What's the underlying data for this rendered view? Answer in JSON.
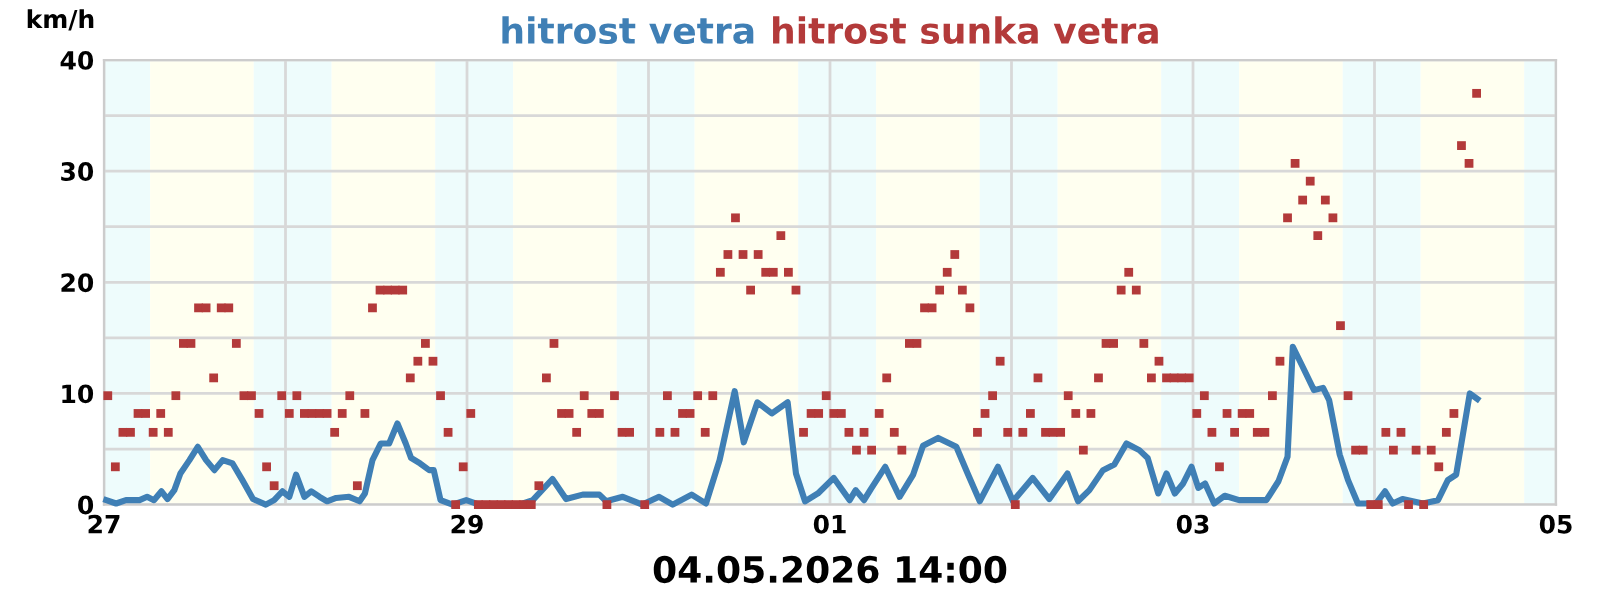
{
  "chart_data": {
    "type": "line",
    "xlabel": "04.05.2026 14:00",
    "ylabel": "km/h",
    "legend": "top",
    "grid": true,
    "xlim": [
      "2026-04-27",
      "2026-05-05"
    ],
    "xticks": [
      {
        "value": "2026-04-27",
        "label": "27"
      },
      {
        "value": "2026-04-28",
        "label": null
      },
      {
        "value": "2026-04-29",
        "label": "29"
      },
      {
        "value": "2026-04-30",
        "label": null
      },
      {
        "value": "2026-05-01",
        "label": "01"
      },
      {
        "value": "2026-05-02",
        "label": null
      },
      {
        "value": "2026-05-03",
        "label": "03"
      },
      {
        "value": "2026-05-04",
        "label": null
      },
      {
        "value": "2026-05-05",
        "label": "05"
      }
    ],
    "ylim": [
      0,
      40
    ],
    "yticks": [
      0,
      {
        "value": 5,
        "label": null
      },
      10,
      {
        "value": 15,
        "label": null
      },
      20,
      {
        "value": 25,
        "label": null
      },
      30,
      {
        "value": 35,
        "label": null
      },
      40
    ],
    "bands": [
      {
        "axis": "x",
        "from": "2026-04-27T00:00",
        "to": "2026-04-27T06:06",
        "color": "#eefcfc"
      },
      {
        "axis": "x",
        "from": "2026-04-27T06:06",
        "to": "2026-04-27T19:48",
        "color": "#fffff0"
      },
      {
        "axis": "x",
        "from": "2026-04-27T19:48",
        "to": "2026-04-28T06:06",
        "color": "#eefcfc"
      },
      {
        "axis": "x",
        "from": "2026-04-28T06:06",
        "to": "2026-04-28T19:48",
        "color": "#fffff0"
      },
      {
        "axis": "x",
        "from": "2026-04-28T19:48",
        "to": "2026-04-29T06:06",
        "color": "#eefcfc"
      },
      {
        "axis": "x",
        "from": "2026-04-29T06:06",
        "to": "2026-04-29T19:48",
        "color": "#fffff0"
      },
      {
        "axis": "x",
        "from": "2026-04-29T19:48",
        "to": "2026-04-30T06:06",
        "color": "#eefcfc"
      },
      {
        "axis": "x",
        "from": "2026-04-30T06:06",
        "to": "2026-04-30T19:48",
        "color": "#fffff0"
      },
      {
        "axis": "x",
        "from": "2026-04-30T19:48",
        "to": "2026-05-01T06:06",
        "color": "#eefcfc"
      },
      {
        "axis": "x",
        "from": "2026-05-01T06:06",
        "to": "2026-05-01T19:48",
        "color": "#fffff0"
      },
      {
        "axis": "x",
        "from": "2026-05-01T19:48",
        "to": "2026-05-02T06:06",
        "color": "#eefcfc"
      },
      {
        "axis": "x",
        "from": "2026-05-02T06:06",
        "to": "2026-05-02T19:48",
        "color": "#fffff0"
      },
      {
        "axis": "x",
        "from": "2026-05-02T19:48",
        "to": "2026-05-03T06:06",
        "color": "#eefcfc"
      },
      {
        "axis": "x",
        "from": "2026-05-03T06:06",
        "to": "2026-05-03T19:48",
        "color": "#fffff0"
      },
      {
        "axis": "x",
        "from": "2026-05-03T19:48",
        "to": "2026-05-04T06:06",
        "color": "#eefcfc"
      },
      {
        "axis": "x",
        "from": "2026-05-04T06:06",
        "to": "2026-05-04T19:48",
        "color": "#fffff0"
      },
      {
        "axis": "x",
        "from": "2026-05-04T19:48",
        "to": "2026-05-05T00:00",
        "color": "#eefcfc"
      }
    ],
    "series": [
      {
        "name": "hitrost vetra",
        "color": "#3f7fb5",
        "marker": "none",
        "x": [
          "2026-04-27T00:18",
          "2026-04-27T01:36",
          "2026-04-27T02:54",
          "2026-04-27T04:42",
          "2026-04-27T05:42",
          "2026-04-27T06:36",
          "2026-04-27T07:36",
          "2026-04-27T08:24",
          "2026-04-27T09:18",
          "2026-04-27T10:06",
          "2026-04-27T11:18",
          "2026-04-27T12:24",
          "2026-04-27T13:30",
          "2026-04-27T14:36",
          "2026-04-27T15:42",
          "2026-04-27T17:00",
          "2026-04-27T18:18",
          "2026-04-27T19:42",
          "2026-04-27T21:24",
          "2026-04-27T22:30",
          "2026-04-27T23:36",
          "2026-04-28T00:30",
          "2026-04-28T01:24",
          "2026-04-28T02:30",
          "2026-04-28T03:24",
          "2026-04-28T04:30",
          "2026-04-28T05:30",
          "2026-04-28T06:42",
          "2026-04-28T08:24",
          "2026-04-28T09:48",
          "2026-04-28T10:30",
          "2026-04-28T11:30",
          "2026-04-28T12:36",
          "2026-04-28T13:42",
          "2026-04-28T14:48",
          "2026-04-28T15:54",
          "2026-04-28T16:36",
          "2026-04-28T17:48",
          "2026-04-28T19:00",
          "2026-04-28T19:36",
          "2026-04-28T20:30",
          "2026-04-28T22:06",
          "2026-04-28T23:54",
          "2026-04-29T01:36",
          "2026-04-29T06:54",
          "2026-04-29T08:42",
          "2026-04-29T11:18",
          "2026-04-29T13:06",
          "2026-04-29T15:18",
          "2026-04-29T17:30",
          "2026-04-29T18:24",
          "2026-04-29T20:36",
          "2026-04-29T23:12",
          "2026-04-30T01:24",
          "2026-04-30T03:12",
          "2026-04-30T05:42",
          "2026-04-30T07:36",
          "2026-04-30T09:24",
          "2026-04-30T11:24",
          "2026-04-30T12:36",
          "2026-04-30T14:24",
          "2026-04-30T16:18",
          "2026-04-30T18:24",
          "2026-04-30T19:30",
          "2026-04-30T20:42",
          "2026-04-30T22:24",
          "2026-05-01T00:30",
          "2026-05-01T02:36",
          "2026-05-01T03:24",
          "2026-05-01T04:30",
          "2026-05-01T05:24",
          "2026-05-01T07:18",
          "2026-05-01T09:12",
          "2026-05-01T11:00",
          "2026-05-01T12:18",
          "2026-05-01T14:18",
          "2026-05-01T16:42",
          "2026-05-01T18:12",
          "2026-05-01T19:48",
          "2026-05-01T22:12",
          "2026-05-02T00:12",
          "2026-05-02T02:48",
          "2026-05-02T05:00",
          "2026-05-02T07:24",
          "2026-05-02T08:48",
          "2026-05-02T10:18",
          "2026-05-02T12:06",
          "2026-05-02T13:36",
          "2026-05-02T15:12",
          "2026-05-02T16:54",
          "2026-05-02T18:00",
          "2026-05-02T19:24",
          "2026-05-02T20:30",
          "2026-05-02T21:36",
          "2026-05-02T22:42",
          "2026-05-02T23:48",
          "2026-05-03T00:42",
          "2026-05-03T01:36",
          "2026-05-03T02:48",
          "2026-05-03T04:12",
          "2026-05-03T06:06",
          "2026-05-03T09:42",
          "2026-05-03T11:18",
          "2026-05-03T12:30",
          "2026-05-03T13:12",
          "2026-05-03T14:30",
          "2026-05-03T16:00",
          "2026-05-03T17:12",
          "2026-05-03T18:00",
          "2026-05-03T19:24",
          "2026-05-03T20:30",
          "2026-05-03T21:48",
          "2026-05-04T00:12",
          "2026-05-04T01:24",
          "2026-05-04T02:24",
          "2026-05-04T03:42",
          "2026-05-04T06:24",
          "2026-05-04T08:24",
          "2026-05-04T09:42",
          "2026-05-04T10:48",
          "2026-05-04T12:36",
          "2026-05-04T13:36"
        ],
        "values": [
          0.4,
          0.1,
          0.4,
          0.4,
          0.7,
          0.4,
          1.2,
          0.5,
          1.3,
          2.8,
          4.0,
          5.2,
          4.0,
          3.1,
          4.0,
          3.7,
          2.2,
          0.5,
          0,
          0.4,
          1.2,
          0.7,
          2.7,
          0.7,
          1.2,
          0.7,
          0.3,
          0.6,
          0.7,
          0.3,
          1.0,
          4.0,
          5.5,
          5.5,
          7.3,
          5.5,
          4.2,
          3.7,
          3.1,
          3.1,
          0.4,
          0,
          0.4,
          0,
          0,
          0.4,
          2.3,
          0.5,
          0.9,
          0.9,
          0.3,
          0.7,
          0,
          0.7,
          0,
          0.9,
          0.1,
          4.0,
          10.2,
          5.6,
          9.2,
          8.2,
          9.2,
          2.8,
          0.3,
          1.0,
          2.4,
          0.4,
          1.3,
          0.4,
          1.4,
          3.4,
          0.7,
          2.7,
          5.3,
          6.0,
          5.2,
          2.8,
          0.3,
          3.4,
          0.3,
          2.4,
          0.5,
          2.8,
          0.3,
          1.3,
          3.1,
          3.6,
          5.5,
          4.9,
          4.2,
          1.0,
          2.8,
          1.0,
          1.9,
          3.4,
          1.5,
          1.9,
          0.1,
          0.8,
          0.4,
          0.4,
          2.1,
          4.3,
          14.2,
          12.4,
          10.3,
          10.5,
          9.4,
          4.5,
          2.2,
          0.1,
          0.1,
          1.2,
          0.1,
          0.5,
          0.1,
          0.4,
          2.2,
          2.7,
          10.0,
          9.5
        ]
      },
      {
        "name": "hitrost sunka vetra",
        "type": "scatter",
        "color": "#b33a3a",
        "marker": "square",
        "x": [
          "2026-04-27T00:30",
          "2026-04-27T01:30",
          "2026-04-27T02:30",
          "2026-04-27T03:30",
          "2026-04-27T04:30",
          "2026-04-27T05:30",
          "2026-04-27T06:30",
          "2026-04-27T07:30",
          "2026-04-27T08:30",
          "2026-04-27T09:30",
          "2026-04-27T10:30",
          "2026-04-27T11:30",
          "2026-04-27T12:30",
          "2026-04-27T13:30",
          "2026-04-27T14:30",
          "2026-04-27T15:30",
          "2026-04-27T16:30",
          "2026-04-27T17:30",
          "2026-04-27T18:30",
          "2026-04-27T19:30",
          "2026-04-27T20:30",
          "2026-04-27T21:30",
          "2026-04-27T22:30",
          "2026-04-27T23:30",
          "2026-04-28T00:30",
          "2026-04-28T01:30",
          "2026-04-28T02:30",
          "2026-04-28T03:30",
          "2026-04-28T04:30",
          "2026-04-28T05:30",
          "2026-04-28T06:30",
          "2026-04-28T07:30",
          "2026-04-28T08:30",
          "2026-04-28T09:30",
          "2026-04-28T10:30",
          "2026-04-28T11:30",
          "2026-04-28T12:30",
          "2026-04-28T13:30",
          "2026-04-28T14:30",
          "2026-04-28T15:30",
          "2026-04-28T16:30",
          "2026-04-28T17:30",
          "2026-04-28T18:30",
          "2026-04-28T19:30",
          "2026-04-28T20:30",
          "2026-04-28T21:30",
          "2026-04-28T22:30",
          "2026-04-28T23:30",
          "2026-04-29T00:30",
          "2026-04-29T01:30",
          "2026-04-29T02:30",
          "2026-04-29T03:30",
          "2026-04-29T04:30",
          "2026-04-29T05:30",
          "2026-04-29T06:30",
          "2026-04-29T07:30",
          "2026-04-29T08:30",
          "2026-04-29T09:30",
          "2026-04-29T10:30",
          "2026-04-29T11:30",
          "2026-04-29T12:30",
          "2026-04-29T13:30",
          "2026-04-29T14:30",
          "2026-04-29T15:30",
          "2026-04-29T16:30",
          "2026-04-29T17:30",
          "2026-04-29T18:30",
          "2026-04-29T19:30",
          "2026-04-29T20:30",
          "2026-04-29T21:30",
          "2026-04-29T23:30",
          "2026-04-30T01:30",
          "2026-04-30T02:30",
          "2026-04-30T03:30",
          "2026-04-30T04:30",
          "2026-04-30T05:30",
          "2026-04-30T06:30",
          "2026-04-30T07:30",
          "2026-04-30T08:30",
          "2026-04-30T09:30",
          "2026-04-30T10:30",
          "2026-04-30T11:30",
          "2026-04-30T12:30",
          "2026-04-30T13:30",
          "2026-04-30T14:30",
          "2026-04-30T15:30",
          "2026-04-30T16:30",
          "2026-04-30T17:30",
          "2026-04-30T18:30",
          "2026-04-30T19:30",
          "2026-04-30T20:30",
          "2026-04-30T21:30",
          "2026-04-30T22:30",
          "2026-04-30T23:30",
          "2026-05-01T00:30",
          "2026-05-01T01:30",
          "2026-05-01T02:30",
          "2026-05-01T03:30",
          "2026-05-01T04:30",
          "2026-05-01T05:30",
          "2026-05-01T06:30",
          "2026-05-01T07:30",
          "2026-05-01T08:30",
          "2026-05-01T09:30",
          "2026-05-01T10:30",
          "2026-05-01T11:30",
          "2026-05-01T12:30",
          "2026-05-01T13:30",
          "2026-05-01T14:30",
          "2026-05-01T15:30",
          "2026-05-01T16:30",
          "2026-05-01T17:30",
          "2026-05-01T18:30",
          "2026-05-01T19:30",
          "2026-05-01T20:30",
          "2026-05-01T21:30",
          "2026-05-01T22:30",
          "2026-05-01T23:30",
          "2026-05-02T00:30",
          "2026-05-02T01:30",
          "2026-05-02T02:30",
          "2026-05-02T03:30",
          "2026-05-02T04:30",
          "2026-05-02T05:30",
          "2026-05-02T06:30",
          "2026-05-02T07:30",
          "2026-05-02T08:30",
          "2026-05-02T09:30",
          "2026-05-02T10:30",
          "2026-05-02T11:30",
          "2026-05-02T12:30",
          "2026-05-02T13:30",
          "2026-05-02T14:30",
          "2026-05-02T15:30",
          "2026-05-02T16:30",
          "2026-05-02T17:30",
          "2026-05-02T18:30",
          "2026-05-02T19:30",
          "2026-05-02T20:30",
          "2026-05-02T21:30",
          "2026-05-02T22:30",
          "2026-05-02T23:30",
          "2026-05-03T00:30",
          "2026-05-03T01:30",
          "2026-05-03T02:30",
          "2026-05-03T03:30",
          "2026-05-03T04:30",
          "2026-05-03T05:30",
          "2026-05-03T06:30",
          "2026-05-03T07:30",
          "2026-05-03T08:30",
          "2026-05-03T09:30",
          "2026-05-03T10:30",
          "2026-05-03T11:30",
          "2026-05-03T12:30",
          "2026-05-03T13:30",
          "2026-05-03T14:30",
          "2026-05-03T15:30",
          "2026-05-03T16:30",
          "2026-05-03T17:30",
          "2026-05-03T18:30",
          "2026-05-03T19:30",
          "2026-05-03T20:30",
          "2026-05-03T21:30",
          "2026-05-03T22:30",
          "2026-05-03T23:30",
          "2026-05-04T00:30",
          "2026-05-04T01:30",
          "2026-05-04T02:30",
          "2026-05-04T03:30",
          "2026-05-04T04:30",
          "2026-05-04T05:30",
          "2026-05-04T06:30",
          "2026-05-04T07:30",
          "2026-05-04T08:30",
          "2026-05-04T09:30",
          "2026-05-04T10:30",
          "2026-05-04T11:30",
          "2026-05-04T12:30",
          "2026-05-04T13:30"
        ],
        "values": [
          9.8,
          3.4,
          6.5,
          6.5,
          8.2,
          8.2,
          6.5,
          8.2,
          6.5,
          9.8,
          14.5,
          14.5,
          17.7,
          17.7,
          11.4,
          17.7,
          17.7,
          14.5,
          9.8,
          9.8,
          8.2,
          3.4,
          1.7,
          9.8,
          8.2,
          9.8,
          8.2,
          8.2,
          8.2,
          8.2,
          6.5,
          8.2,
          9.8,
          1.7,
          8.2,
          17.7,
          19.3,
          19.3,
          19.3,
          19.3,
          11.4,
          12.9,
          14.5,
          12.9,
          9.8,
          6.5,
          0,
          3.4,
          8.2,
          0,
          0,
          0,
          0,
          0,
          0,
          0,
          0,
          1.7,
          11.4,
          14.5,
          8.2,
          8.2,
          6.5,
          9.8,
          8.2,
          8.2,
          0,
          9.8,
          6.5,
          6.5,
          0,
          6.5,
          9.8,
          6.5,
          8.2,
          8.2,
          9.8,
          6.5,
          9.8,
          20.9,
          22.5,
          25.8,
          22.5,
          19.3,
          22.5,
          20.9,
          20.9,
          24.2,
          20.9,
          19.3,
          6.5,
          8.2,
          8.2,
          9.8,
          8.2,
          8.2,
          6.5,
          4.9,
          6.5,
          4.9,
          8.2,
          11.4,
          6.5,
          4.9,
          14.5,
          14.5,
          17.7,
          17.7,
          19.3,
          20.9,
          22.5,
          19.3,
          17.7,
          6.5,
          8.2,
          9.8,
          12.9,
          6.5,
          0,
          6.5,
          8.2,
          11.4,
          6.5,
          6.5,
          6.5,
          9.8,
          8.2,
          4.9,
          8.2,
          11.4,
          14.5,
          14.5,
          19.3,
          20.9,
          19.3,
          14.5,
          11.4,
          12.9,
          11.4,
          11.4,
          11.4,
          11.4,
          8.2,
          9.8,
          6.5,
          3.4,
          8.2,
          6.5,
          8.2,
          8.2,
          6.5,
          6.5,
          9.8,
          12.9,
          25.8,
          30.7,
          27.4,
          29.1,
          24.2,
          27.4,
          25.8,
          16.1,
          9.8,
          4.9,
          4.9,
          0,
          0,
          6.5,
          4.9,
          6.5,
          0,
          4.9,
          0,
          4.9,
          3.4,
          6.5,
          8.2,
          32.3,
          30.7,
          37.0
        ]
      }
    ]
  }
}
